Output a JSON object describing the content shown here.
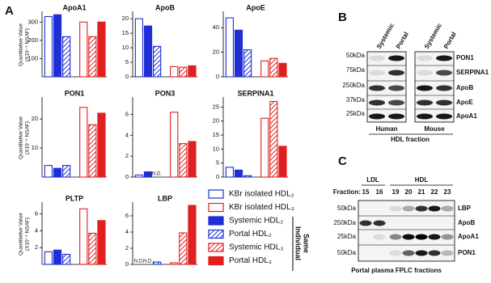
{
  "panel_labels": [
    "A",
    "B",
    "C"
  ],
  "legend": {
    "entries": [
      {
        "name": "KBr isolated HDL₂",
        "color": "#1f2fd6",
        "fill": "outline"
      },
      {
        "name": "Systemic HDL₂",
        "color": "#1f2fd6",
        "fill": "solid"
      },
      {
        "name": "Portal HDL₂",
        "color": "#1f2fd6",
        "fill": "hatch"
      },
      {
        "name": "KBr isolated HDL₃",
        "color": "#e02020",
        "fill": "outline"
      },
      {
        "name": "Systemic HDL₃",
        "color": "#e02020",
        "fill": "hatch"
      },
      {
        "name": "Portal HDL₃",
        "color": "#e02020",
        "fill": "solid"
      }
    ],
    "bracket_label": [
      "Same",
      "Individual"
    ]
  },
  "chart_data": [
    {
      "type": "bar",
      "title": "ApoA1",
      "ylabel": [
        "Quantitative Value",
        "(X10⁻⁵ NSAF)"
      ],
      "values": [
        330,
        340,
        220,
        300,
        220,
        300
      ],
      "ylim": [
        0,
        350
      ],
      "yticks": [
        100,
        200,
        300
      ]
    },
    {
      "type": "bar",
      "title": "ApoB",
      "values": [
        20,
        17.5,
        10.5,
        3.5,
        3.3,
        3.8
      ],
      "ylim": [
        0,
        22
      ],
      "yticks": [
        0,
        5,
        10,
        15,
        20
      ]
    },
    {
      "type": "bar",
      "title": "ApoE",
      "values": [
        48,
        38,
        22,
        13,
        15,
        11
      ],
      "ylim": [
        0,
        52
      ],
      "yticks": [
        0,
        20,
        40
      ]
    },
    {
      "type": "bar",
      "title": "PON1",
      "ylabel": [
        "Quantitative Value",
        "(X10⁻⁵ NSAF)"
      ],
      "values": [
        4,
        3,
        4,
        24,
        18,
        22
      ],
      "ylim": [
        0,
        27
      ],
      "yticks": [
        10,
        20
      ]
    },
    {
      "type": "bar",
      "title": "PON3",
      "values": [
        0.2,
        0.5,
        null,
        6.2,
        3.2,
        3.4
      ],
      "value_labels": [
        null,
        null,
        "N.D.",
        null,
        null,
        null
      ],
      "ylim": [
        0,
        7.5
      ],
      "yticks": [
        0,
        2,
        4,
        6
      ]
    },
    {
      "type": "bar",
      "title": "SERPINA1",
      "values": [
        3.5,
        2.5,
        0.5,
        21,
        27,
        11
      ],
      "ylim": [
        0,
        28
      ],
      "yticks": [
        0,
        5,
        10,
        15,
        20,
        25
      ]
    },
    {
      "type": "bar",
      "title": "PLTP",
      "ylabel": [
        "Quantitative Value",
        "(X10⁻⁵ NSAF)"
      ],
      "values": [
        1.5,
        1.7,
        1.2,
        6.6,
        3.7,
        5.2
      ],
      "ylim": [
        0,
        7.2
      ],
      "yticks": [
        2,
        4,
        6
      ]
    },
    {
      "type": "bar",
      "title": "LBP",
      "values": [
        null,
        null,
        0.3,
        0.2,
        3.9,
        7.3
      ],
      "value_labels": [
        "N.D.",
        "N.D.",
        null,
        null,
        null,
        null
      ],
      "ylim": [
        0,
        7.5
      ],
      "yticks": [
        0,
        2,
        4,
        6
      ]
    }
  ],
  "blot_b": {
    "columns": [
      "Systemic",
      "Portal",
      "Systemic",
      "Portal"
    ],
    "groups": [
      "Human",
      "Mouse"
    ],
    "fraction": "HDL fraction",
    "rows": [
      {
        "marker": "50kDa",
        "protein": "PON1"
      },
      {
        "marker": "75kDa",
        "protein": "SERPINA1"
      },
      {
        "marker": "250kDa",
        "protein": "ApoB"
      },
      {
        "marker": "37kDa",
        "protein": "ApoE"
      },
      {
        "marker": "25kDa",
        "protein": "ApoA1"
      }
    ]
  },
  "blot_c": {
    "groups": [
      "LDL",
      "HDL"
    ],
    "fraction_label": "Fraction:",
    "fractions": [
      "15",
      "16",
      "19",
      "20",
      "21",
      "22",
      "23"
    ],
    "rows": [
      {
        "marker": "50kDa",
        "protein": "LBP"
      },
      {
        "marker": "250kDa",
        "protein": "ApoB"
      },
      {
        "marker": "25kDa",
        "protein": "ApoA1"
      },
      {
        "marker": "50kDa",
        "protein": "PON1"
      }
    ],
    "caption": "Portal plasma FPLC fractions"
  }
}
